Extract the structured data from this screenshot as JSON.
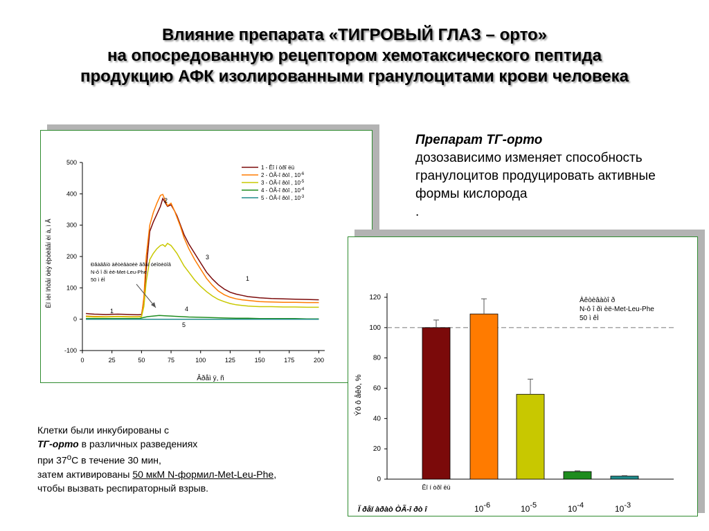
{
  "title": {
    "line1": "Влияние препарата «ТИГРОВЫЙ ГЛАЗ – орто»",
    "line2": "на опосредованную рецептором хемотаксического пептида",
    "line3": "продукцию АФК изолированными гранулоцитами крови человека"
  },
  "description": {
    "heading": "Препарат ТГ-орто",
    "text": "дозозависимо изменяет способность гранулоцитов продуцировать активные формы кислорода",
    "dot": "."
  },
  "note": {
    "line1": "Клетки были инкубированы с",
    "line2_bold": "ТГ-орто",
    "line2_rest": " в различных разведениях",
    "line3_pre": "при 37",
    "line3_sup": "о",
    "line3_post": "С в течение 30 мин,",
    "line4_pre": "затем активированы ",
    "line4_link": "50 мкМ N-формил-Met-Leu-Phe",
    "line4_post": ",",
    "line5": "чтобы вызвать респираторный взрыв."
  },
  "colors": {
    "accent_green": "#2e8b2e",
    "series1": "#7b0a0a",
    "series2": "#ff7b00",
    "series3": "#c8c800",
    "series4": "#1e8c1e",
    "series5": "#1f8a8a"
  },
  "chart_data": [
    {
      "type": "line",
      "xlabel": "Âðåì ÿ, ñ",
      "ylabel": "Ëî ìèí îñöåí öèÿ ëþöèãåí èí à, ì Â",
      "xlim": [
        0,
        205
      ],
      "ylim": [
        -100,
        500
      ],
      "xticks": [
        "0",
        "25",
        "50",
        "75",
        "100",
        "125",
        "150",
        "175",
        "200"
      ],
      "yticks": [
        "-100",
        "0",
        "100",
        "200",
        "300",
        "400",
        "500"
      ],
      "legend_position": "top-right",
      "annotation": {
        "line1": "Ðåàãåíò àêòèâàöèè ãðàí óëîöèòîâ",
        "line2": "N-ô î ðì èë-Met-Leu-Phe",
        "line3": "50 ì êÌ"
      },
      "series": [
        {
          "name": "1 - Êî í òðî ëü",
          "label": "1",
          "x": [
            3,
            10,
            20,
            30,
            40,
            47,
            50,
            52,
            54,
            57,
            60,
            63,
            66,
            68,
            70,
            72,
            75,
            78,
            80,
            83,
            86,
            90,
            95,
            100,
            105,
            110,
            115,
            120,
            125,
            130,
            135,
            140,
            145,
            150,
            160,
            170,
            180,
            190,
            200
          ],
          "y": [
            18,
            16,
            15,
            16,
            15,
            14,
            15,
            60,
            160,
            280,
            310,
            335,
            360,
            385,
            372,
            360,
            365,
            345,
            330,
            300,
            270,
            240,
            210,
            180,
            150,
            128,
            110,
            96,
            86,
            80,
            76,
            72,
            70,
            68,
            66,
            65,
            64,
            63,
            62
          ]
        },
        {
          "name": "2 - ÒÃ-î ðòî , 10",
          "name_sup": "-6",
          "label": "2",
          "x": [
            3,
            10,
            20,
            30,
            40,
            47,
            50,
            52,
            54,
            57,
            60,
            63,
            66,
            68,
            70,
            72,
            75,
            78,
            80,
            83,
            86,
            90,
            95,
            100,
            105,
            110,
            115,
            120,
            125,
            130,
            135,
            140,
            145,
            150,
            160,
            170,
            180,
            190,
            200
          ],
          "y": [
            10,
            9,
            8,
            9,
            8,
            8,
            9,
            70,
            200,
            300,
            340,
            370,
            395,
            398,
            380,
            362,
            370,
            345,
            325,
            295,
            260,
            225,
            190,
            160,
            130,
            108,
            90,
            78,
            70,
            65,
            62,
            60,
            58,
            56,
            55,
            54,
            54,
            53,
            53
          ]
        },
        {
          "name": "3 - ÒÃ-î ðòî , 10",
          "name_sup": "-5",
          "label": "3",
          "x": [
            3,
            10,
            20,
            30,
            40,
            47,
            50,
            52,
            54,
            57,
            60,
            63,
            66,
            68,
            70,
            72,
            75,
            78,
            80,
            83,
            86,
            90,
            95,
            100,
            105,
            110,
            115,
            120,
            125,
            130,
            135,
            140,
            145,
            150,
            160,
            170,
            180,
            190,
            200
          ],
          "y": [
            8,
            7,
            7,
            8,
            7,
            7,
            8,
            40,
            120,
            190,
            210,
            225,
            235,
            238,
            232,
            242,
            235,
            220,
            210,
            190,
            170,
            150,
            125,
            105,
            88,
            74,
            63,
            56,
            50,
            46,
            44,
            42,
            41,
            40,
            40,
            39,
            39,
            38,
            38
          ]
        },
        {
          "name": "4 - ÒÃ-î ðòî , 10",
          "name_sup": "-4",
          "label": "4",
          "x": [
            3,
            20,
            40,
            48,
            50,
            55,
            60,
            65,
            70,
            75,
            80,
            90,
            100,
            110,
            120,
            130,
            140,
            150,
            160,
            170,
            180,
            190,
            200
          ],
          "y": [
            2,
            2,
            2,
            2,
            4,
            8,
            10,
            12,
            11,
            10,
            9,
            7,
            6,
            5,
            4,
            3,
            3,
            2,
            2,
            2,
            2,
            1,
            1
          ]
        },
        {
          "name": "5 - ÒÃ-î ðòî , 10",
          "name_sup": "-3",
          "label": "5",
          "x": [
            3,
            50,
            100,
            150,
            200
          ],
          "y": [
            0,
            0,
            0,
            0,
            0
          ]
        }
      ]
    },
    {
      "type": "bar",
      "ylabel": "Ýô ô åêò, %",
      "ylim": [
        0,
        120
      ],
      "yticks": [
        "0",
        "20",
        "40",
        "60",
        "80",
        "100",
        "120"
      ],
      "reference_line": 100,
      "annotation": {
        "line1": "Àêòèâàòî ð",
        "line2": "N-ô î ðì èë-Met-Leu-Phe",
        "line3": "50 ì êÌ"
      },
      "control_label": "Êî í òðî ëü",
      "group_label": "Ï ðåï àðàò ÒÃ-î ðò î",
      "categories": [
        {
          "label": "Êî í òðî ëü",
          "base": "",
          "sup": ""
        },
        {
          "label": "10-6",
          "base": "10",
          "sup": "-6"
        },
        {
          "label": "10-5",
          "base": "10",
          "sup": "-5"
        },
        {
          "label": "10-4",
          "base": "10",
          "sup": "-4"
        },
        {
          "label": "10-3",
          "base": "10",
          "sup": "-3"
        }
      ],
      "values": [
        100,
        109,
        56,
        5,
        2
      ],
      "errors": [
        5,
        10,
        10,
        0.5,
        0.3
      ],
      "colors": [
        "#7b0a0a",
        "#ff7b00",
        "#c8c800",
        "#1e8c1e",
        "#1f8a8a"
      ]
    }
  ]
}
